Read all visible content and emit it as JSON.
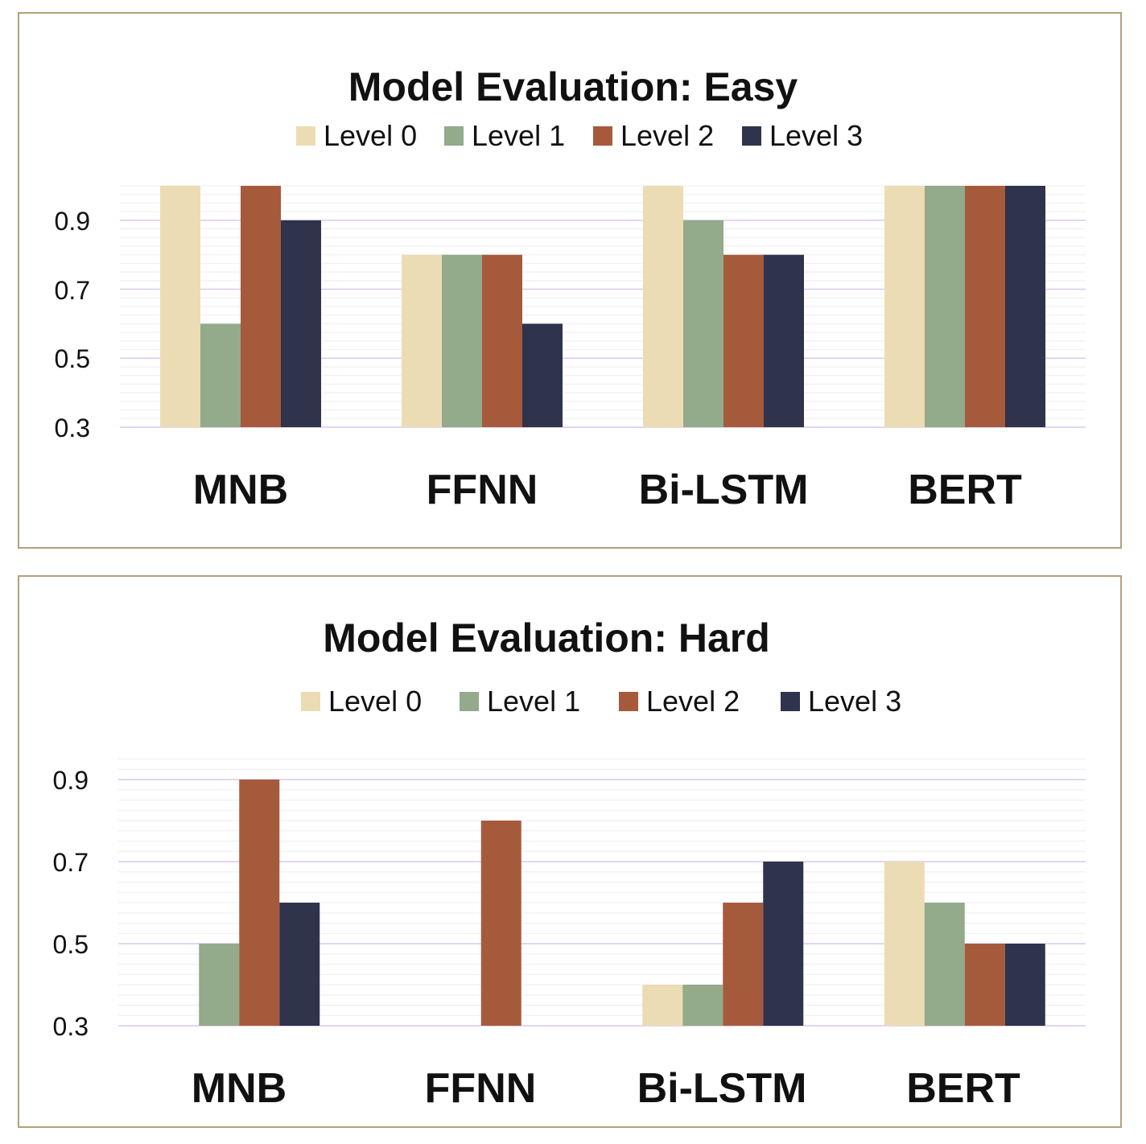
{
  "colors": {
    "level0": "#ecdcb4",
    "level1": "#93aa8b",
    "level2": "#a65a3c",
    "level3": "#2f334b",
    "gridMajor": "#d9c9ee",
    "gridMinor": "#eeeef4",
    "frame": "#b3a27a"
  },
  "chart_data": [
    {
      "type": "bar",
      "title": "Model Evaluation: Easy",
      "categories": [
        "MNB",
        "FFNN",
        "Bi-LSTM",
        "BERT"
      ],
      "ylim": [
        0.3,
        1.0
      ],
      "yticks": [
        "0.3",
        "0.5",
        "0.7",
        "0.9"
      ],
      "series": [
        {
          "name": "Level 0",
          "values": [
            1.0,
            0.8,
            1.0,
            1.0
          ]
        },
        {
          "name": "Level 1",
          "values": [
            0.6,
            0.8,
            0.9,
            1.0
          ]
        },
        {
          "name": "Level 2",
          "values": [
            1.0,
            0.8,
            0.8,
            1.0
          ]
        },
        {
          "name": "Level 3",
          "values": [
            0.9,
            0.6,
            0.8,
            1.0
          ]
        }
      ],
      "legend": "top"
    },
    {
      "type": "bar",
      "title": "Model Evaluation: Hard",
      "categories": [
        "MNB",
        "FFNN",
        "Bi-LSTM",
        "BERT"
      ],
      "ylim": [
        0.3,
        0.96
      ],
      "yticks": [
        "0.3",
        "0.5",
        "0.7",
        "0.9"
      ],
      "series": [
        {
          "name": "Level 0",
          "values": [
            0.3,
            0.3,
            0.4,
            0.7
          ]
        },
        {
          "name": "Level 1",
          "values": [
            0.5,
            0.3,
            0.4,
            0.6
          ]
        },
        {
          "name": "Level 2",
          "values": [
            0.9,
            0.8,
            0.6,
            0.5
          ]
        },
        {
          "name": "Level 3",
          "values": [
            0.6,
            0.3,
            0.7,
            0.5
          ]
        }
      ],
      "legend": "top"
    }
  ]
}
